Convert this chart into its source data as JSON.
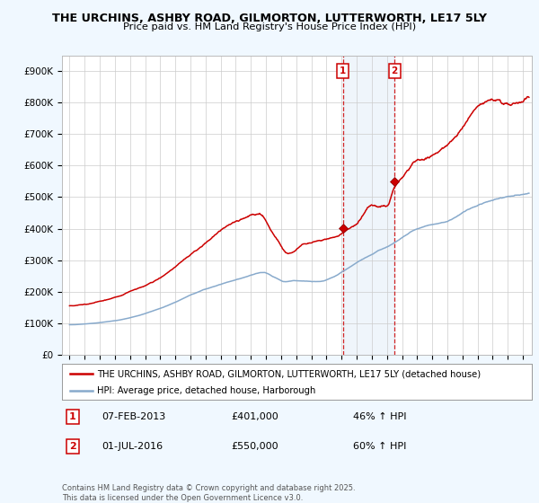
{
  "title1": "THE URCHINS, ASHBY ROAD, GILMORTON, LUTTERWORTH, LE17 5LY",
  "title2": "Price paid vs. HM Land Registry's House Price Index (HPI)",
  "ylim": [
    0,
    950000
  ],
  "xlim_start": 1994.5,
  "xlim_end": 2025.6,
  "bg_color": "#f0f8ff",
  "plot_bg": "#ffffff",
  "red_color": "#cc0000",
  "blue_color": "#88aacc",
  "sale1_x": 2013.1,
  "sale1_y": 401000,
  "sale2_x": 2016.5,
  "sale2_y": 550000,
  "sale1_label": "1",
  "sale2_label": "2",
  "sale1_date": "07-FEB-2013",
  "sale1_price": "£401,000",
  "sale1_hpi": "46% ↑ HPI",
  "sale2_date": "01-JUL-2016",
  "sale2_price": "£550,000",
  "sale2_hpi": "60% ↑ HPI",
  "legend1": "THE URCHINS, ASHBY ROAD, GILMORTON, LUTTERWORTH, LE17 5LY (detached house)",
  "legend2": "HPI: Average price, detached house, Harborough",
  "footer": "Contains HM Land Registry data © Crown copyright and database right 2025.\nThis data is licensed under the Open Government Licence v3.0."
}
